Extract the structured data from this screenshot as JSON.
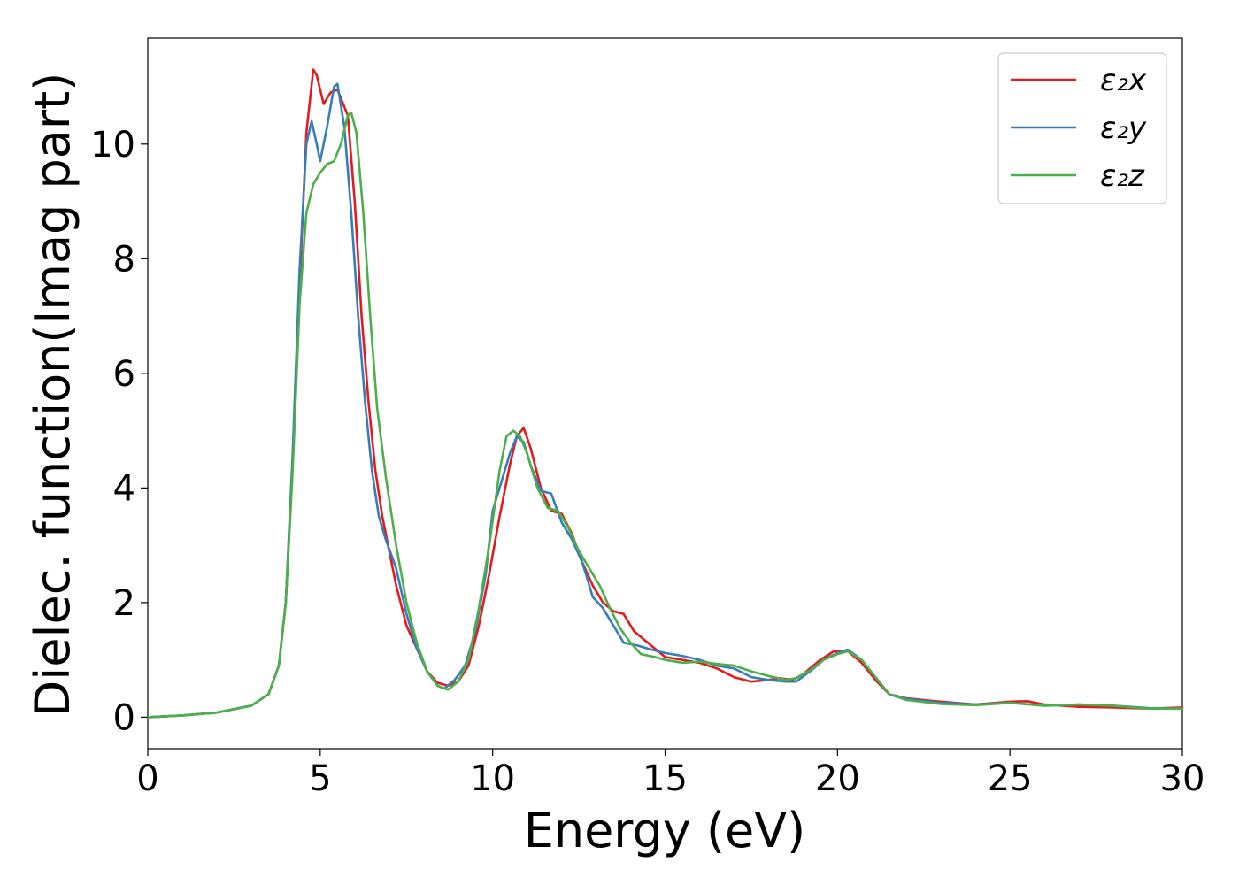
{
  "chart_data": {
    "type": "line",
    "title": "",
    "xlabel": "Energy (eV)",
    "ylabel": "Dielec. function(Imag part)",
    "xlim": [
      0,
      30
    ],
    "ylim": [
      -0.55,
      11.85
    ],
    "xticks": [
      0,
      5,
      10,
      15,
      20,
      25,
      30
    ],
    "yticks": [
      0,
      2,
      4,
      6,
      8,
      10
    ],
    "grid": false,
    "legend": "top-right",
    "series": [
      {
        "name": "ε₂x",
        "color": "#e41a1c",
        "points": [
          [
            0,
            0
          ],
          [
            1,
            0.03
          ],
          [
            2,
            0.08
          ],
          [
            3,
            0.2
          ],
          [
            3.5,
            0.4
          ],
          [
            3.8,
            0.9
          ],
          [
            4.0,
            2.0
          ],
          [
            4.2,
            4.5
          ],
          [
            4.4,
            7.5
          ],
          [
            4.6,
            10.2
          ],
          [
            4.8,
            11.3
          ],
          [
            4.9,
            11.2
          ],
          [
            5.1,
            10.7
          ],
          [
            5.3,
            10.9
          ],
          [
            5.5,
            10.95
          ],
          [
            5.8,
            10.5
          ],
          [
            6.0,
            9.0
          ],
          [
            6.2,
            7.0
          ],
          [
            6.4,
            5.5
          ],
          [
            6.6,
            4.3
          ],
          [
            6.8,
            3.5
          ],
          [
            7.0,
            2.9
          ],
          [
            7.2,
            2.3
          ],
          [
            7.5,
            1.6
          ],
          [
            7.8,
            1.2
          ],
          [
            8.1,
            0.8
          ],
          [
            8.4,
            0.6
          ],
          [
            8.7,
            0.55
          ],
          [
            9.0,
            0.62
          ],
          [
            9.3,
            0.9
          ],
          [
            9.6,
            1.6
          ],
          [
            9.9,
            2.5
          ],
          [
            10.2,
            3.5
          ],
          [
            10.5,
            4.4
          ],
          [
            10.7,
            4.9
          ],
          [
            10.9,
            5.05
          ],
          [
            11.1,
            4.7
          ],
          [
            11.4,
            4.0
          ],
          [
            11.7,
            3.6
          ],
          [
            12.0,
            3.55
          ],
          [
            12.3,
            3.2
          ],
          [
            12.6,
            2.7
          ],
          [
            12.9,
            2.3
          ],
          [
            13.2,
            2.0
          ],
          [
            13.5,
            1.85
          ],
          [
            13.8,
            1.8
          ],
          [
            14.1,
            1.5
          ],
          [
            14.4,
            1.35
          ],
          [
            14.7,
            1.2
          ],
          [
            15.0,
            1.05
          ],
          [
            15.5,
            1.0
          ],
          [
            16.0,
            0.95
          ],
          [
            16.5,
            0.85
          ],
          [
            17.0,
            0.7
          ],
          [
            17.5,
            0.62
          ],
          [
            18.0,
            0.65
          ],
          [
            18.3,
            0.68
          ],
          [
            18.7,
            0.65
          ],
          [
            19.0,
            0.75
          ],
          [
            19.5,
            1.0
          ],
          [
            19.9,
            1.15
          ],
          [
            20.3,
            1.15
          ],
          [
            20.7,
            0.95
          ],
          [
            21.1,
            0.65
          ],
          [
            21.5,
            0.4
          ],
          [
            22.0,
            0.33
          ],
          [
            23.0,
            0.27
          ],
          [
            24.0,
            0.22
          ],
          [
            25.0,
            0.27
          ],
          [
            25.5,
            0.28
          ],
          [
            26.0,
            0.22
          ],
          [
            27.0,
            0.18
          ],
          [
            28.0,
            0.17
          ],
          [
            29.0,
            0.15
          ],
          [
            30.0,
            0.17
          ]
        ]
      },
      {
        "name": "ε₂y",
        "color": "#377eb8",
        "points": [
          [
            0,
            0
          ],
          [
            1,
            0.03
          ],
          [
            2,
            0.08
          ],
          [
            3,
            0.2
          ],
          [
            3.5,
            0.4
          ],
          [
            3.8,
            0.9
          ],
          [
            4.0,
            2.0
          ],
          [
            4.2,
            4.6
          ],
          [
            4.4,
            7.8
          ],
          [
            4.6,
            10.0
          ],
          [
            4.75,
            10.4
          ],
          [
            4.9,
            10.0
          ],
          [
            5.0,
            9.7
          ],
          [
            5.2,
            10.3
          ],
          [
            5.4,
            11.0
          ],
          [
            5.5,
            11.05
          ],
          [
            5.7,
            10.3
          ],
          [
            5.9,
            8.8
          ],
          [
            6.1,
            7.0
          ],
          [
            6.3,
            5.5
          ],
          [
            6.5,
            4.3
          ],
          [
            6.7,
            3.5
          ],
          [
            6.9,
            3.1
          ],
          [
            7.2,
            2.6
          ],
          [
            7.5,
            1.8
          ],
          [
            7.8,
            1.2
          ],
          [
            8.1,
            0.8
          ],
          [
            8.4,
            0.55
          ],
          [
            8.6,
            0.5
          ],
          [
            8.9,
            0.65
          ],
          [
            9.2,
            0.9
          ],
          [
            9.5,
            1.5
          ],
          [
            9.8,
            2.5
          ],
          [
            10.0,
            3.6
          ],
          [
            10.3,
            4.2
          ],
          [
            10.5,
            4.6
          ],
          [
            10.7,
            4.9
          ],
          [
            10.9,
            4.8
          ],
          [
            11.1,
            4.4
          ],
          [
            11.4,
            3.95
          ],
          [
            11.7,
            3.9
          ],
          [
            12.0,
            3.4
          ],
          [
            12.3,
            3.1
          ],
          [
            12.6,
            2.7
          ],
          [
            12.9,
            2.1
          ],
          [
            13.2,
            1.9
          ],
          [
            13.5,
            1.6
          ],
          [
            13.8,
            1.3
          ],
          [
            14.2,
            1.25
          ],
          [
            14.6,
            1.18
          ],
          [
            15.0,
            1.12
          ],
          [
            15.5,
            1.07
          ],
          [
            16.0,
            1.0
          ],
          [
            16.5,
            0.9
          ],
          [
            17.0,
            0.85
          ],
          [
            17.5,
            0.7
          ],
          [
            18.0,
            0.65
          ],
          [
            18.5,
            0.62
          ],
          [
            18.8,
            0.62
          ],
          [
            19.2,
            0.8
          ],
          [
            19.6,
            1.0
          ],
          [
            20.0,
            1.12
          ],
          [
            20.3,
            1.18
          ],
          [
            20.7,
            1.0
          ],
          [
            21.1,
            0.7
          ],
          [
            21.5,
            0.4
          ],
          [
            22.0,
            0.32
          ],
          [
            23.0,
            0.25
          ],
          [
            24.0,
            0.22
          ],
          [
            25.0,
            0.25
          ],
          [
            26.0,
            0.2
          ],
          [
            27.0,
            0.22
          ],
          [
            28.0,
            0.2
          ],
          [
            29.0,
            0.16
          ],
          [
            30.0,
            0.15
          ]
        ]
      },
      {
        "name": "ε₂z",
        "color": "#4daf4a",
        "points": [
          [
            0,
            0
          ],
          [
            1,
            0.03
          ],
          [
            2,
            0.08
          ],
          [
            3,
            0.2
          ],
          [
            3.5,
            0.4
          ],
          [
            3.8,
            0.9
          ],
          [
            4.0,
            2.0
          ],
          [
            4.2,
            4.3
          ],
          [
            4.4,
            7.2
          ],
          [
            4.6,
            8.8
          ],
          [
            4.8,
            9.3
          ],
          [
            5.0,
            9.5
          ],
          [
            5.2,
            9.65
          ],
          [
            5.4,
            9.7
          ],
          [
            5.6,
            10.0
          ],
          [
            5.8,
            10.5
          ],
          [
            5.9,
            10.55
          ],
          [
            6.05,
            10.2
          ],
          [
            6.25,
            8.8
          ],
          [
            6.45,
            7.0
          ],
          [
            6.65,
            5.4
          ],
          [
            6.9,
            4.2
          ],
          [
            7.2,
            3.0
          ],
          [
            7.5,
            2.0
          ],
          [
            7.8,
            1.3
          ],
          [
            8.1,
            0.8
          ],
          [
            8.4,
            0.55
          ],
          [
            8.7,
            0.48
          ],
          [
            9.0,
            0.62
          ],
          [
            9.3,
            1.0
          ],
          [
            9.6,
            1.9
          ],
          [
            9.9,
            3.0
          ],
          [
            10.2,
            4.3
          ],
          [
            10.4,
            4.9
          ],
          [
            10.6,
            5.0
          ],
          [
            10.8,
            4.9
          ],
          [
            11.0,
            4.6
          ],
          [
            11.3,
            4.0
          ],
          [
            11.6,
            3.65
          ],
          [
            11.9,
            3.6
          ],
          [
            12.2,
            3.3
          ],
          [
            12.5,
            2.9
          ],
          [
            12.8,
            2.6
          ],
          [
            13.1,
            2.3
          ],
          [
            13.4,
            1.9
          ],
          [
            13.7,
            1.55
          ],
          [
            14.0,
            1.3
          ],
          [
            14.3,
            1.1
          ],
          [
            14.7,
            1.05
          ],
          [
            15.0,
            1.0
          ],
          [
            15.5,
            0.95
          ],
          [
            16.0,
            0.97
          ],
          [
            16.5,
            0.93
          ],
          [
            17.0,
            0.9
          ],
          [
            17.5,
            0.8
          ],
          [
            18.0,
            0.72
          ],
          [
            18.5,
            0.65
          ],
          [
            18.8,
            0.68
          ],
          [
            19.2,
            0.82
          ],
          [
            19.6,
            1.0
          ],
          [
            20.0,
            1.1
          ],
          [
            20.3,
            1.15
          ],
          [
            20.7,
            1.0
          ],
          [
            21.1,
            0.7
          ],
          [
            21.5,
            0.4
          ],
          [
            22.0,
            0.3
          ],
          [
            23.0,
            0.23
          ],
          [
            24.0,
            0.21
          ],
          [
            25.0,
            0.25
          ],
          [
            26.0,
            0.2
          ],
          [
            27.0,
            0.22
          ],
          [
            28.0,
            0.2
          ],
          [
            29.0,
            0.15
          ],
          [
            30.0,
            0.15
          ]
        ]
      }
    ]
  }
}
